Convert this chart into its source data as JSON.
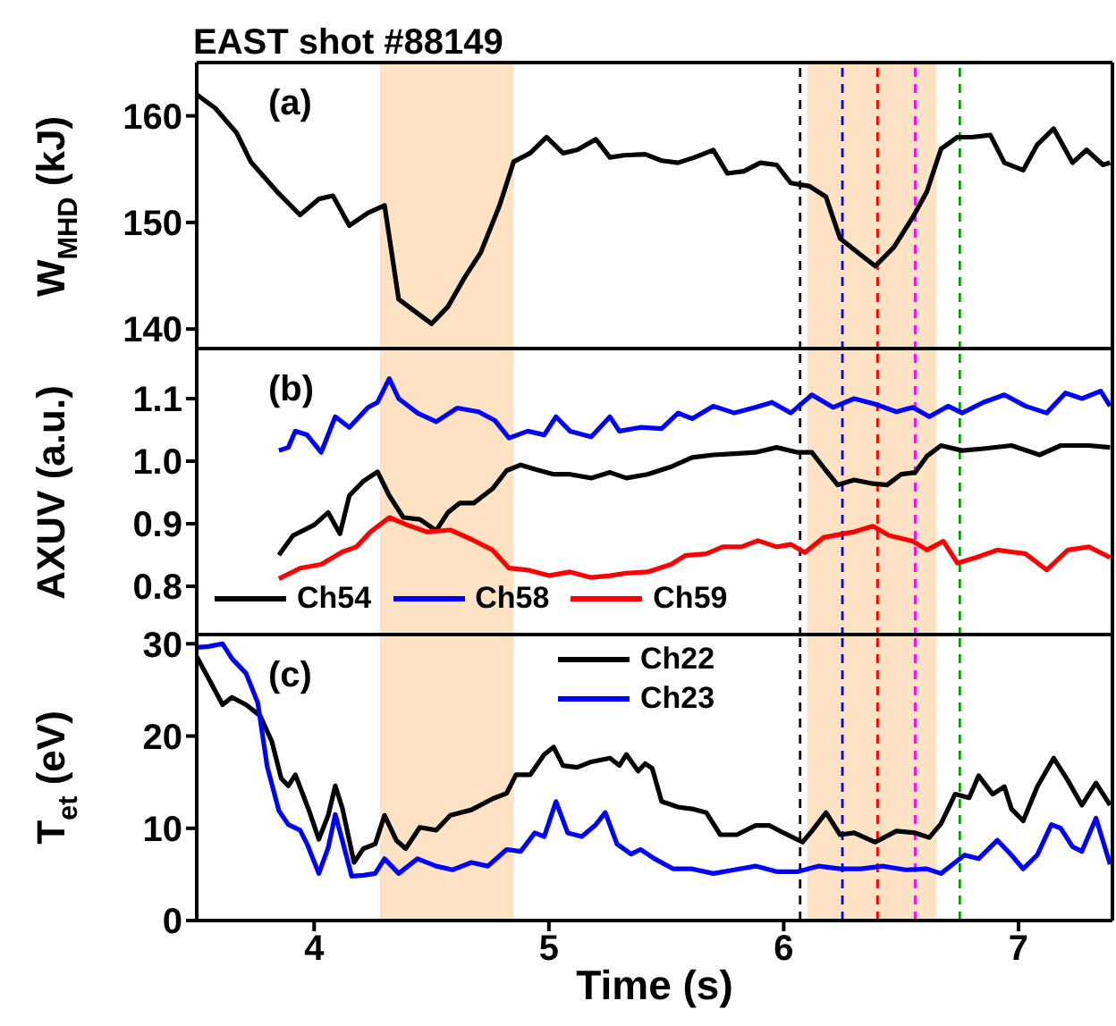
{
  "chart_data": [
    {
      "type": "line",
      "title": "EAST shot #88149",
      "ylabel": "W$_{MHD}$ (kJ)",
      "annotations": [
        "(a)"
      ],
      "xlim": [
        3.5,
        7.4
      ],
      "xticks": [
        4,
        5,
        6,
        7
      ],
      "ylim": [
        138,
        165
      ],
      "yticks": [
        140,
        150,
        160
      ],
      "tick_labels": "y",
      "bands": [
        {
          "axis": "x",
          "from": 4.28,
          "to": 4.85,
          "color": "#fde3c3"
        },
        {
          "axis": "x",
          "from": 6.1,
          "to": 6.65,
          "color": "#fde3c3"
        }
      ],
      "ref_lines": [
        {
          "axis": "x",
          "value": 6.07,
          "color": "#000000",
          "line_style": "dashed"
        },
        {
          "axis": "x",
          "value": 6.25,
          "color": "#0000ff",
          "line_style": "dashed"
        },
        {
          "axis": "x",
          "value": 6.4,
          "color": "#ff0000",
          "line_style": "dashed"
        },
        {
          "axis": "x",
          "value": 6.56,
          "color": "#ff00ff",
          "line_style": "dashed"
        },
        {
          "axis": "x",
          "value": 6.75,
          "color": "#00a000",
          "line_style": "dashed"
        }
      ],
      "series": [
        {
          "color": "#000000",
          "x": [
            3.5,
            3.58,
            3.67,
            3.73,
            3.85,
            3.94,
            4.02,
            4.08,
            4.15,
            4.23,
            4.3,
            4.36,
            4.42,
            4.5,
            4.57,
            4.64,
            4.71,
            4.79,
            4.85,
            4.92,
            4.99,
            5.06,
            5.12,
            5.2,
            5.26,
            5.32,
            5.41,
            5.48,
            5.55,
            5.62,
            5.7,
            5.76,
            5.83,
            5.9,
            5.97,
            6.03,
            6.11,
            6.18,
            6.24,
            6.32,
            6.39,
            6.47,
            6.55,
            6.61,
            6.67,
            6.74,
            6.8,
            6.88,
            6.94,
            7.02,
            7.08,
            7.15,
            7.23,
            7.29,
            7.36,
            7.39
          ],
          "values": [
            162.0,
            160.7,
            158.4,
            155.7,
            152.7,
            150.7,
            152.2,
            152.5,
            149.7,
            150.9,
            151.6,
            142.8,
            141.8,
            140.5,
            142.1,
            144.8,
            147.2,
            151.6,
            155.7,
            156.5,
            158.0,
            156.5,
            156.8,
            157.8,
            156.1,
            156.3,
            156.4,
            155.8,
            155.6,
            156.1,
            156.8,
            154.6,
            154.8,
            155.6,
            155.4,
            153.7,
            153.4,
            152.4,
            148.5,
            147.1,
            145.9,
            147.7,
            150.5,
            152.9,
            156.9,
            158.0,
            158.0,
            158.2,
            155.6,
            154.9,
            157.3,
            158.8,
            155.6,
            156.8,
            155.4,
            155.6
          ]
        }
      ]
    },
    {
      "type": "line",
      "ylabel": "AXUV (a.u.)",
      "annotations": [
        "(b)"
      ],
      "xlim": [
        3.5,
        7.4
      ],
      "xticks": [
        4,
        5,
        6,
        7
      ],
      "ylim": [
        0.72,
        1.18
      ],
      "yticks": [
        0.8,
        0.9,
        {
          "value": 1,
          "label": "1.0"
        },
        1.1
      ],
      "tick_labels": "y",
      "legend": "bottom left",
      "bands": [
        {
          "axis": "x",
          "from": 4.28,
          "to": 4.85,
          "color": "#fde3c3"
        },
        {
          "axis": "x",
          "from": 6.1,
          "to": 6.65,
          "color": "#fde3c3"
        }
      ],
      "ref_lines": [
        {
          "axis": "x",
          "value": 6.07,
          "color": "#000000",
          "line_style": "dashed"
        },
        {
          "axis": "x",
          "value": 6.25,
          "color": "#0000ff",
          "line_style": "dashed"
        },
        {
          "axis": "x",
          "value": 6.4,
          "color": "#ff0000",
          "line_style": "dashed"
        },
        {
          "axis": "x",
          "value": 6.56,
          "color": "#ff00ff",
          "line_style": "dashed"
        },
        {
          "axis": "x",
          "value": 6.75,
          "color": "#00a000",
          "line_style": "dashed"
        }
      ],
      "series": [
        {
          "name": "Ch54",
          "color": "#000000",
          "x": [
            3.85,
            3.91,
            4.0,
            4.06,
            4.11,
            4.15,
            4.21,
            4.27,
            4.32,
            4.38,
            4.45,
            4.52,
            4.57,
            4.62,
            4.68,
            4.76,
            4.82,
            4.88,
            4.94,
            5.02,
            5.09,
            5.18,
            5.26,
            5.33,
            5.42,
            5.52,
            5.61,
            5.7,
            5.79,
            5.88,
            5.97,
            6.06,
            6.12,
            6.18,
            6.23,
            6.3,
            6.38,
            6.44,
            6.5,
            6.56,
            6.61,
            6.67,
            6.76,
            6.85,
            6.97,
            7.09,
            7.18,
            7.3,
            7.39
          ],
          "values": [
            0.85,
            0.881,
            0.898,
            0.918,
            0.884,
            0.945,
            0.968,
            0.983,
            0.945,
            0.91,
            0.907,
            0.889,
            0.918,
            0.933,
            0.933,
            0.956,
            0.985,
            0.994,
            0.987,
            0.979,
            0.979,
            0.973,
            0.982,
            0.973,
            0.979,
            0.991,
            1.006,
            1.01,
            1.012,
            1.014,
            1.022,
            1.014,
            1.014,
            0.985,
            0.962,
            0.97,
            0.964,
            0.962,
            0.979,
            0.982,
            1.008,
            1.025,
            1.017,
            1.02,
            1.025,
            1.01,
            1.025,
            1.025,
            1.022
          ]
        },
        {
          "name": "Ch58",
          "color": "#0000ff",
          "x": [
            3.85,
            3.89,
            3.92,
            3.97,
            4.03,
            4.09,
            4.15,
            4.23,
            4.27,
            4.32,
            4.36,
            4.44,
            4.52,
            4.61,
            4.7,
            4.77,
            4.83,
            4.91,
            4.98,
            5.03,
            5.09,
            5.18,
            5.26,
            5.3,
            5.39,
            5.48,
            5.55,
            5.61,
            5.7,
            5.79,
            5.88,
            5.95,
            6.03,
            6.12,
            6.21,
            6.3,
            6.39,
            6.48,
            6.55,
            6.62,
            6.7,
            6.76,
            6.85,
            6.94,
            7.03,
            7.12,
            7.2,
            7.27,
            7.35,
            7.39
          ],
          "values": [
            1.017,
            1.022,
            1.048,
            1.042,
            1.014,
            1.071,
            1.054,
            1.086,
            1.094,
            1.132,
            1.1,
            1.077,
            1.063,
            1.085,
            1.079,
            1.065,
            1.037,
            1.048,
            1.042,
            1.071,
            1.048,
            1.039,
            1.071,
            1.048,
            1.054,
            1.052,
            1.077,
            1.068,
            1.088,
            1.077,
            1.086,
            1.094,
            1.077,
            1.106,
            1.086,
            1.1,
            1.091,
            1.079,
            1.086,
            1.071,
            1.088,
            1.077,
            1.094,
            1.106,
            1.088,
            1.077,
            1.109,
            1.1,
            1.112,
            1.088
          ]
        },
        {
          "name": "Ch59",
          "color": "#ff0000",
          "x": [
            3.85,
            3.94,
            4.03,
            4.12,
            4.18,
            4.24,
            4.32,
            4.39,
            4.48,
            4.58,
            4.67,
            4.76,
            4.83,
            4.91,
            5.0,
            5.09,
            5.18,
            5.26,
            5.33,
            5.42,
            5.52,
            5.58,
            5.67,
            5.74,
            5.82,
            5.89,
            5.97,
            6.03,
            6.09,
            6.17,
            6.24,
            6.3,
            6.38,
            6.45,
            6.55,
            6.61,
            6.68,
            6.74,
            6.82,
            6.91,
            6.97,
            7.03,
            7.12,
            7.21,
            7.3,
            7.39
          ],
          "values": [
            0.812,
            0.829,
            0.835,
            0.855,
            0.863,
            0.887,
            0.91,
            0.899,
            0.887,
            0.89,
            0.875,
            0.858,
            0.829,
            0.826,
            0.817,
            0.823,
            0.814,
            0.817,
            0.821,
            0.823,
            0.835,
            0.849,
            0.852,
            0.863,
            0.863,
            0.873,
            0.863,
            0.867,
            0.854,
            0.878,
            0.883,
            0.887,
            0.896,
            0.881,
            0.872,
            0.858,
            0.872,
            0.837,
            0.846,
            0.858,
            0.855,
            0.852,
            0.826,
            0.858,
            0.863,
            0.846
          ]
        }
      ]
    },
    {
      "type": "line",
      "xlabel": "Time (s)",
      "ylabel": "T$_{et}$ (eV)",
      "annotations": [
        "(c)"
      ],
      "xlim": [
        3.5,
        7.4
      ],
      "xticks": [
        4,
        5,
        6,
        7
      ],
      "ylim": [
        0,
        31
      ],
      "yticks": [
        0,
        10,
        20,
        30
      ],
      "legend": "top",
      "bands": [
        {
          "axis": "x",
          "from": 4.28,
          "to": 4.85,
          "color": "#fde3c3"
        },
        {
          "axis": "x",
          "from": 6.1,
          "to": 6.65,
          "color": "#fde3c3"
        }
      ],
      "ref_lines": [
        {
          "axis": "x",
          "value": 6.07,
          "color": "#000000",
          "line_style": "dashed"
        },
        {
          "axis": "x",
          "value": 6.25,
          "color": "#0000ff",
          "line_style": "dashed"
        },
        {
          "axis": "x",
          "value": 6.4,
          "color": "#ff0000",
          "line_style": "dashed"
        },
        {
          "axis": "x",
          "value": 6.56,
          "color": "#ff00ff",
          "line_style": "dashed"
        },
        {
          "axis": "x",
          "value": 6.75,
          "color": "#00a000",
          "line_style": "dashed"
        }
      ],
      "series": [
        {
          "name": "Ch22",
          "color": "#000000",
          "x": [
            3.5,
            3.56,
            3.61,
            3.65,
            3.71,
            3.77,
            3.82,
            3.86,
            3.89,
            3.92,
            3.95,
            3.98,
            4.02,
            4.06,
            4.09,
            4.12,
            4.17,
            4.21,
            4.26,
            4.3,
            4.35,
            4.39,
            4.45,
            4.52,
            4.58,
            4.67,
            4.76,
            4.82,
            4.86,
            4.92,
            4.98,
            5.02,
            5.06,
            5.12,
            5.18,
            5.26,
            5.3,
            5.33,
            5.38,
            5.41,
            5.44,
            5.48,
            5.55,
            5.61,
            5.67,
            5.73,
            5.8,
            5.88,
            5.94,
            6.0,
            6.08,
            6.12,
            6.18,
            6.24,
            6.3,
            6.39,
            6.48,
            6.56,
            6.62,
            6.67,
            6.73,
            6.79,
            6.83,
            6.89,
            6.94,
            6.97,
            7.02,
            7.08,
            7.15,
            7.21,
            7.27,
            7.33,
            7.39
          ],
          "values": [
            28.6,
            25.8,
            23.4,
            24.2,
            23.4,
            22.2,
            19.4,
            15.4,
            14.6,
            15.8,
            13.8,
            11.8,
            8.8,
            11.4,
            14.6,
            12.2,
            6.3,
            7.8,
            8.3,
            11.4,
            8.7,
            7.8,
            10.1,
            9.8,
            11.4,
            12.0,
            13.2,
            13.8,
            15.8,
            15.8,
            18.0,
            18.8,
            16.8,
            16.6,
            17.2,
            17.6,
            16.8,
            18.0,
            16.2,
            17.0,
            16.5,
            12.9,
            12.3,
            12.1,
            11.7,
            9.3,
            9.3,
            10.3,
            10.3,
            9.5,
            8.5,
            9.7,
            11.7,
            9.3,
            9.5,
            8.5,
            9.7,
            9.5,
            9.0,
            10.5,
            13.7,
            13.3,
            15.7,
            13.7,
            14.5,
            12.1,
            10.8,
            14.5,
            17.6,
            15.2,
            12.5,
            14.9,
            12.5
          ]
        },
        {
          "name": "Ch23",
          "color": "#0000ff",
          "x": [
            3.5,
            3.55,
            3.61,
            3.65,
            3.71,
            3.76,
            3.8,
            3.85,
            3.89,
            3.94,
            3.97,
            4.02,
            4.06,
            4.09,
            4.12,
            4.16,
            4.21,
            4.26,
            4.3,
            4.36,
            4.44,
            4.52,
            4.59,
            4.67,
            4.74,
            4.82,
            4.88,
            4.94,
            4.98,
            5.03,
            5.08,
            5.14,
            5.2,
            5.24,
            5.29,
            5.35,
            5.39,
            5.45,
            5.53,
            5.61,
            5.7,
            5.79,
            5.88,
            5.97,
            6.06,
            6.15,
            6.24,
            6.33,
            6.42,
            6.52,
            6.61,
            6.67,
            6.73,
            6.77,
            6.83,
            6.91,
            6.97,
            7.02,
            7.08,
            7.14,
            7.18,
            7.23,
            7.27,
            7.33,
            7.39
          ],
          "values": [
            29.6,
            29.7,
            30.0,
            28.4,
            26.8,
            23.6,
            16.7,
            11.9,
            10.4,
            9.8,
            8.3,
            5.1,
            7.9,
            11.5,
            8.7,
            4.8,
            4.9,
            5.1,
            6.7,
            5.1,
            6.7,
            5.9,
            5.5,
            6.3,
            5.9,
            7.7,
            7.5,
            9.5,
            9.1,
            12.9,
            9.5,
            9.1,
            10.4,
            11.7,
            8.3,
            7.2,
            7.7,
            6.7,
            5.6,
            5.6,
            5.1,
            5.5,
            5.9,
            5.3,
            5.3,
            5.9,
            5.6,
            5.6,
            5.9,
            5.5,
            5.6,
            5.1,
            6.3,
            7.1,
            6.7,
            8.7,
            7.1,
            5.6,
            7.1,
            10.4,
            10.0,
            8.0,
            7.5,
            11.1,
            6.1
          ]
        }
      ]
    }
  ]
}
